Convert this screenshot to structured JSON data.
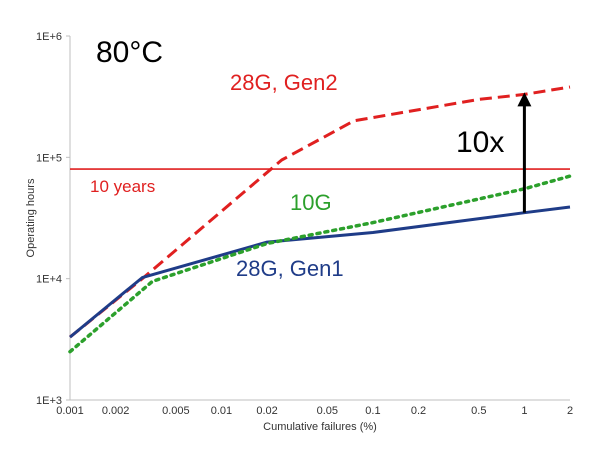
{
  "chart_data": {
    "type": "line",
    "title": "80°C",
    "xlabel": "Cumulative failures (%)",
    "ylabel": "Operating hours",
    "x_scale": "log",
    "y_scale": "log",
    "xlim": [
      0.001,
      2
    ],
    "ylim": [
      1000,
      1000000
    ],
    "x_ticks": [
      0.001,
      0.002,
      0.005,
      0.01,
      0.02,
      0.05,
      0.1,
      0.2,
      0.5,
      1,
      2
    ],
    "x_tick_labels": [
      "0.001",
      "0.002",
      "0.005",
      "0.01",
      "0.02",
      "0.05",
      "0.1",
      "0.2",
      "0.5",
      "1",
      "2"
    ],
    "y_ticks": [
      1000,
      10000,
      100000,
      1000000
    ],
    "y_tick_labels": [
      "1E+3",
      "1E+4",
      "1E+5",
      "1E+6"
    ],
    "grid": false,
    "series": [
      {
        "name": "28G, Gen2",
        "color": "#e02020",
        "style": "dashed",
        "x": [
          0.001,
          0.003,
          0.025,
          0.075,
          0.5,
          1,
          2
        ],
        "y": [
          3300,
          10000,
          95000,
          200000,
          300000,
          330000,
          380000
        ]
      },
      {
        "name": "28G, Gen1",
        "color": "#1f3c88",
        "style": "solid",
        "x": [
          0.001,
          0.003,
          0.02,
          0.1,
          1,
          2
        ],
        "y": [
          3300,
          10200,
          20000,
          24000,
          35000,
          39000
        ]
      },
      {
        "name": "10G",
        "color": "#2ca02c",
        "style": "dotted",
        "x": [
          0.001,
          0.0035,
          0.02,
          0.1,
          1,
          2
        ],
        "y": [
          2500,
          9500,
          19500,
          29000,
          55000,
          70000
        ]
      }
    ],
    "reference_line": {
      "label": "10 years",
      "y": 80000,
      "color": "#e02020"
    },
    "annotation": {
      "text": "10x",
      "x": 1,
      "from_y": 35000,
      "to_y": 330000,
      "color": "#000000"
    }
  }
}
